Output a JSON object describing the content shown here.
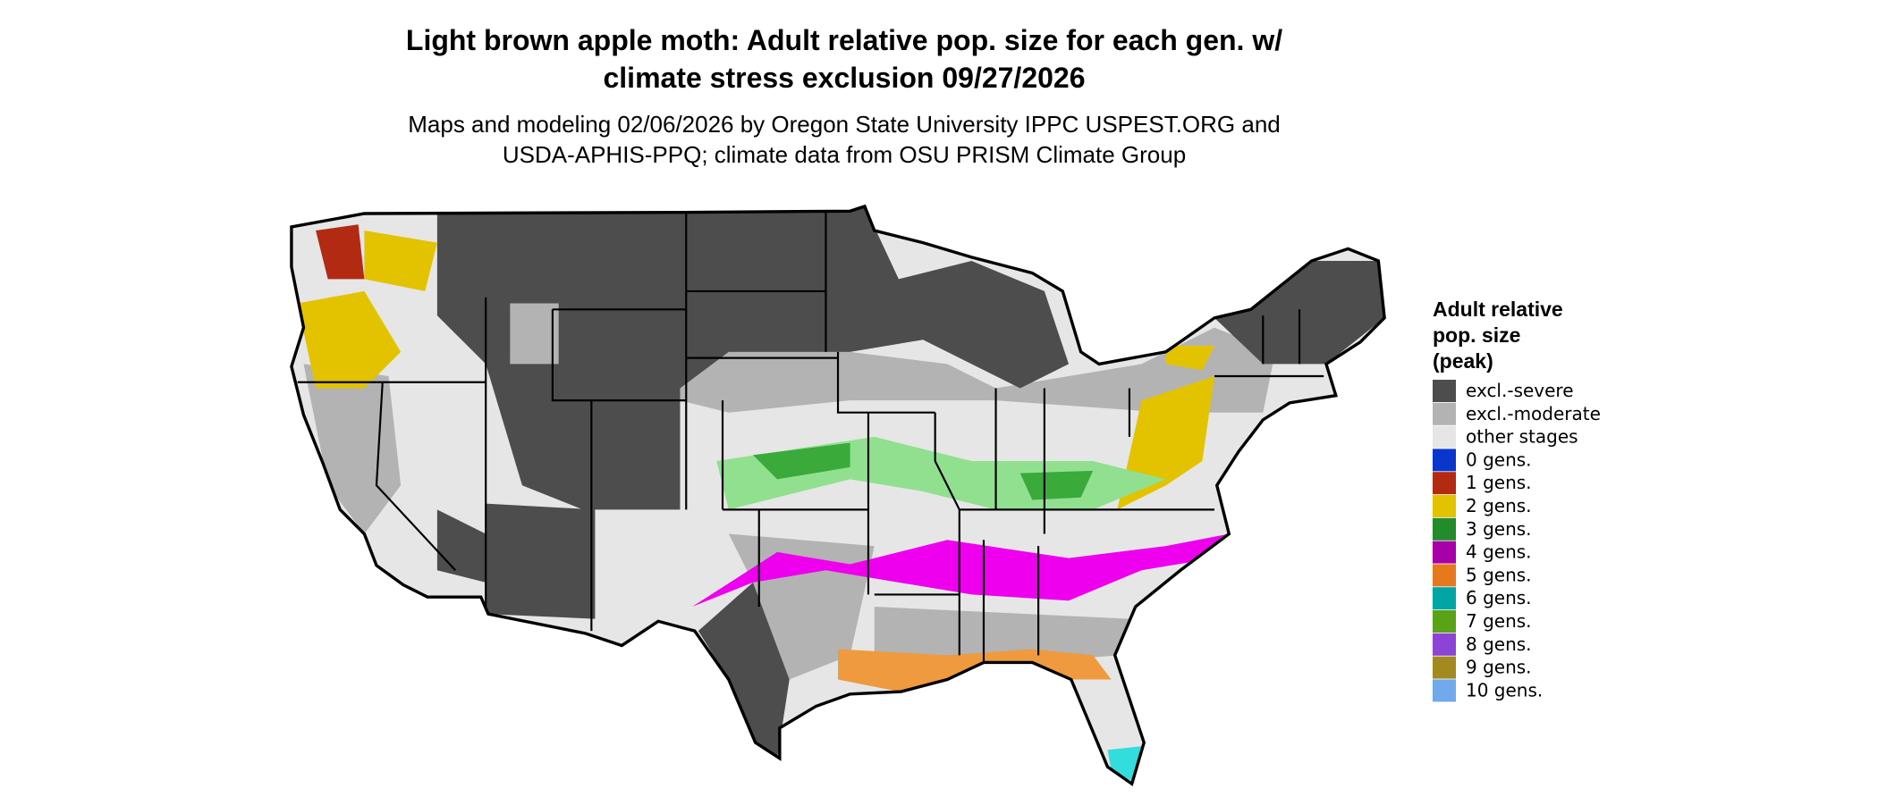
{
  "title": [
    "Light brown apple moth: Adult relative pop. size for each gen. w/",
    "climate stress exclusion 09/27/2026"
  ],
  "subtitle": [
    "Maps and modeling 02/06/2026 by Oregon State University IPPC USPEST.ORG and",
    "USDA-APHIS-PPQ; climate data from OSU PRISM Climate Group"
  ],
  "legend": {
    "title": [
      "Adult relative",
      "pop. size",
      "(peak)"
    ],
    "entries": [
      {
        "label": "excl.-severe",
        "color": "#4d4d4d"
      },
      {
        "label": "excl.-moderate",
        "color": "#b3b3b3"
      },
      {
        "label": "other stages",
        "color": "#e6e6e6"
      },
      {
        "label": "0 gens.",
        "color": "#0a36cc"
      },
      {
        "label": "1 gens.",
        "color": "#b22a12"
      },
      {
        "label": "2 gens.",
        "color": "#e3c300"
      },
      {
        "label": "3 gens.",
        "color": "#238b2a"
      },
      {
        "label": "4 gens.",
        "color": "#a800a8"
      },
      {
        "label": "5 gens.",
        "color": "#e6781e"
      },
      {
        "label": "6 gens.",
        "color": "#00a6a6"
      },
      {
        "label": "7 gens.",
        "color": "#5aa317"
      },
      {
        "label": "8 gens.",
        "color": "#8b44d6"
      },
      {
        "label": "9 gens.",
        "color": "#a38a20"
      },
      {
        "label": "10 gens.",
        "color": "#70aaea"
      }
    ]
  }
}
